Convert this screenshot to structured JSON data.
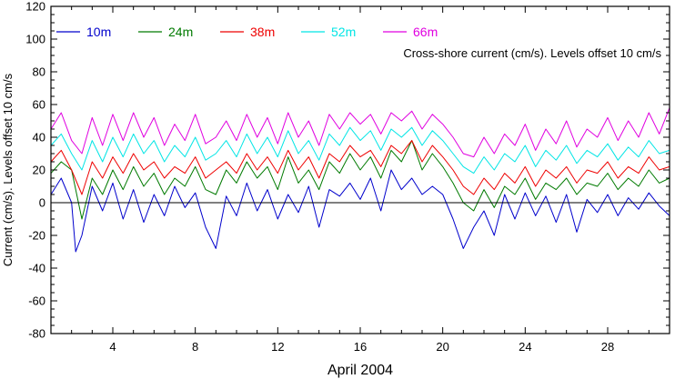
{
  "chart_data": {
    "type": "line",
    "title": "",
    "annotation": "Cross-shore current (cm/s). Levels offset 10 cm/s",
    "xlabel": "April 2004",
    "ylabel": "Current (cm/s). Levels offset 10 cm/s",
    "xlim": [
      1,
      31
    ],
    "ylim": [
      -80,
      120
    ],
    "x_ticks": [
      4,
      8,
      12,
      16,
      20,
      24,
      28
    ],
    "x_tick_labels": [
      "4",
      "8",
      "12",
      "16",
      "20",
      "24",
      "28"
    ],
    "y_ticks": [
      -80,
      -60,
      -40,
      -20,
      0,
      20,
      40,
      60,
      80,
      100,
      120
    ],
    "y_tick_labels": [
      "-80",
      "-60",
      "-40",
      "-20",
      "0",
      "20",
      "40",
      "60",
      "80",
      "100",
      "120"
    ],
    "zero_line": true,
    "grid": false,
    "legend_position": "top-left",
    "series": [
      {
        "name": "10m",
        "color": "#0000cc",
        "x": [
          1,
          1.5,
          2,
          2.2,
          2.5,
          3,
          3.5,
          4,
          4.5,
          5,
          5.5,
          6,
          6.5,
          7,
          7.5,
          8,
          8.5,
          9,
          9.5,
          10,
          10.5,
          11,
          11.5,
          12,
          12.5,
          13,
          13.5,
          14,
          14.5,
          15,
          15.5,
          16,
          16.5,
          17,
          17.5,
          18,
          18.5,
          19,
          19.5,
          20,
          20.5,
          21,
          21.5,
          22,
          22.5,
          23,
          23.5,
          24,
          24.5,
          25,
          25.5,
          26,
          26.5,
          27,
          27.5,
          28,
          28.5,
          29,
          29.5,
          30,
          30.5,
          31
        ],
        "values": [
          5,
          15,
          0,
          -30,
          -20,
          10,
          -5,
          12,
          -10,
          8,
          -12,
          5,
          -8,
          10,
          -3,
          6,
          -15,
          -28,
          4,
          -8,
          12,
          -5,
          8,
          -10,
          5,
          -6,
          10,
          -15,
          8,
          4,
          12,
          2,
          15,
          -5,
          20,
          8,
          15,
          5,
          10,
          5,
          -10,
          -28,
          -15,
          -5,
          -20,
          5,
          -10,
          6,
          -8,
          4,
          -12,
          5,
          -18,
          2,
          -6,
          5,
          -8,
          3,
          -4,
          6,
          -2,
          -8
        ]
      },
      {
        "name": "24m",
        "color": "#007a00",
        "x": [
          1,
          1.5,
          2,
          2.5,
          3,
          3.5,
          4,
          4.5,
          5,
          5.5,
          6,
          6.5,
          7,
          7.5,
          8,
          8.5,
          9,
          9.5,
          10,
          10.5,
          11,
          11.5,
          12,
          12.5,
          13,
          13.5,
          14,
          14.5,
          15,
          15.5,
          16,
          16.5,
          17,
          17.5,
          18,
          18.5,
          19,
          19.5,
          20,
          20.5,
          21,
          21.5,
          22,
          22.5,
          23,
          23.5,
          24,
          24.5,
          25,
          25.5,
          26,
          26.5,
          27,
          27.5,
          28,
          28.5,
          29,
          29.5,
          30,
          30.5,
          31
        ],
        "values": [
          18,
          25,
          20,
          -10,
          15,
          5,
          20,
          8,
          22,
          10,
          18,
          5,
          15,
          10,
          22,
          8,
          5,
          20,
          12,
          25,
          15,
          22,
          8,
          28,
          12,
          20,
          8,
          25,
          18,
          30,
          20,
          28,
          15,
          32,
          25,
          38,
          20,
          30,
          22,
          12,
          0,
          -5,
          8,
          -3,
          10,
          5,
          15,
          2,
          12,
          8,
          15,
          5,
          12,
          10,
          18,
          8,
          15,
          10,
          20,
          12,
          15
        ]
      },
      {
        "name": "38m",
        "color": "#ee0000",
        "x": [
          1,
          1.5,
          2,
          2.5,
          3,
          3.5,
          4,
          4.5,
          5,
          5.5,
          6,
          6.5,
          7,
          7.5,
          8,
          8.5,
          9,
          9.5,
          10,
          10.5,
          11,
          11.5,
          12,
          12.5,
          13,
          13.5,
          14,
          14.5,
          15,
          15.5,
          16,
          16.5,
          17,
          17.5,
          18,
          18.5,
          19,
          19.5,
          20,
          20.5,
          21,
          21.5,
          22,
          22.5,
          23,
          23.5,
          24,
          24.5,
          25,
          25.5,
          26,
          26.5,
          27,
          27.5,
          28,
          28.5,
          29,
          29.5,
          30,
          30.5,
          31
        ],
        "values": [
          25,
          32,
          20,
          5,
          25,
          15,
          28,
          18,
          30,
          20,
          25,
          15,
          22,
          18,
          28,
          15,
          20,
          25,
          18,
          30,
          20,
          28,
          18,
          32,
          20,
          28,
          15,
          30,
          25,
          35,
          28,
          32,
          22,
          35,
          30,
          38,
          25,
          35,
          28,
          20,
          10,
          5,
          15,
          8,
          18,
          12,
          22,
          10,
          20,
          15,
          22,
          12,
          20,
          18,
          25,
          15,
          22,
          18,
          28,
          20,
          22
        ]
      },
      {
        "name": "52m",
        "color": "#00e5e5",
        "x": [
          1,
          1.5,
          2,
          2.5,
          3,
          3.5,
          4,
          4.5,
          5,
          5.5,
          6,
          6.5,
          7,
          7.5,
          8,
          8.5,
          9,
          9.5,
          10,
          10.5,
          11,
          11.5,
          12,
          12.5,
          13,
          13.5,
          14,
          14.5,
          15,
          15.5,
          16,
          16.5,
          17,
          17.5,
          18,
          18.5,
          19,
          19.5,
          20,
          20.5,
          21,
          21.5,
          22,
          22.5,
          23,
          23.5,
          24,
          24.5,
          25,
          25.5,
          26,
          26.5,
          27,
          27.5,
          28,
          28.5,
          29,
          29.5,
          30,
          30.5,
          31
        ],
        "values": [
          35,
          42,
          30,
          20,
          38,
          25,
          40,
          28,
          42,
          30,
          38,
          25,
          35,
          28,
          40,
          26,
          30,
          38,
          28,
          42,
          30,
          40,
          28,
          44,
          30,
          38,
          26,
          42,
          35,
          46,
          38,
          44,
          32,
          45,
          40,
          46,
          35,
          44,
          38,
          30,
          22,
          18,
          28,
          20,
          30,
          25,
          35,
          22,
          32,
          26,
          35,
          24,
          32,
          28,
          36,
          26,
          34,
          28,
          38,
          30,
          32
        ]
      },
      {
        "name": "66m",
        "color": "#e000e0",
        "x": [
          1,
          1.5,
          2,
          2.5,
          3,
          3.5,
          4,
          4.5,
          5,
          5.5,
          6,
          6.5,
          7,
          7.5,
          8,
          8.5,
          9,
          9.5,
          10,
          10.5,
          11,
          11.5,
          12,
          12.5,
          13,
          13.5,
          14,
          14.5,
          15,
          15.5,
          16,
          16.5,
          17,
          17.5,
          18,
          18.5,
          19,
          19.5,
          20,
          20.5,
          21,
          21.5,
          22,
          22.5,
          23,
          23.5,
          24,
          24.5,
          25,
          25.5,
          26,
          26.5,
          27,
          27.5,
          28,
          28.5,
          29,
          29.5,
          30,
          30.5,
          31
        ],
        "values": [
          45,
          55,
          38,
          30,
          52,
          35,
          54,
          38,
          55,
          40,
          52,
          35,
          48,
          38,
          54,
          36,
          40,
          50,
          38,
          54,
          40,
          52,
          36,
          55,
          40,
          50,
          35,
          54,
          45,
          55,
          48,
          54,
          42,
          55,
          50,
          56,
          45,
          54,
          48,
          40,
          30,
          28,
          40,
          30,
          42,
          35,
          48,
          32,
          45,
          36,
          50,
          34,
          45,
          40,
          52,
          38,
          50,
          40,
          55,
          42,
          58
        ]
      }
    ]
  }
}
